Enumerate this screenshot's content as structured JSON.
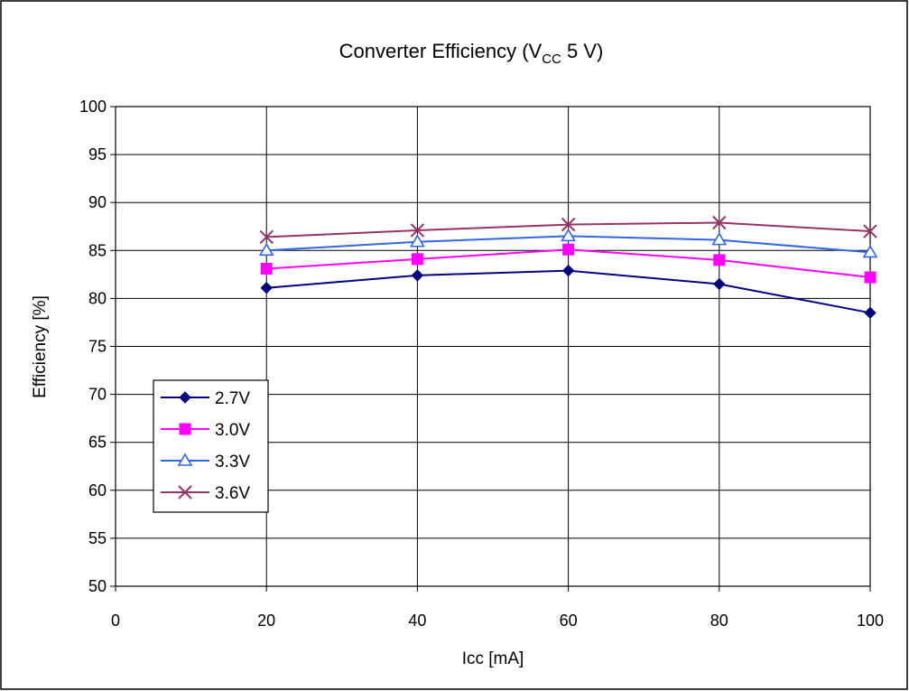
{
  "chart_data": {
    "type": "line",
    "title": "Converter Efficiency (V",
    "title_subscript": "CC",
    "title_suffix": " 5 V)",
    "xlabel": "Icc [mA]",
    "ylabel": "Efficiency [%]",
    "xlim": [
      0,
      100
    ],
    "ylim": [
      50,
      100
    ],
    "xticks": [
      0,
      20,
      40,
      60,
      80,
      100
    ],
    "yticks": [
      50,
      55,
      60,
      65,
      70,
      75,
      80,
      85,
      90,
      95,
      100
    ],
    "grid": true,
    "legend_position": "bottom-left",
    "x": [
      20,
      40,
      60,
      80,
      100
    ],
    "series": [
      {
        "name": "2.7V",
        "values": [
          81.1,
          82.4,
          82.9,
          81.5,
          78.5
        ],
        "color": "#000080",
        "marker": "diamond"
      },
      {
        "name": "3.0V",
        "values": [
          83.1,
          84.1,
          85.1,
          84.0,
          82.2
        ],
        "color": "#FF00FF",
        "marker": "square"
      },
      {
        "name": "3.3V",
        "values": [
          85.0,
          85.9,
          86.5,
          86.1,
          84.8
        ],
        "color": "#3366E6",
        "marker": "triangle"
      },
      {
        "name": "3.6V",
        "values": [
          86.4,
          87.1,
          87.7,
          87.9,
          87.0
        ],
        "color": "#993366",
        "marker": "x"
      }
    ]
  }
}
